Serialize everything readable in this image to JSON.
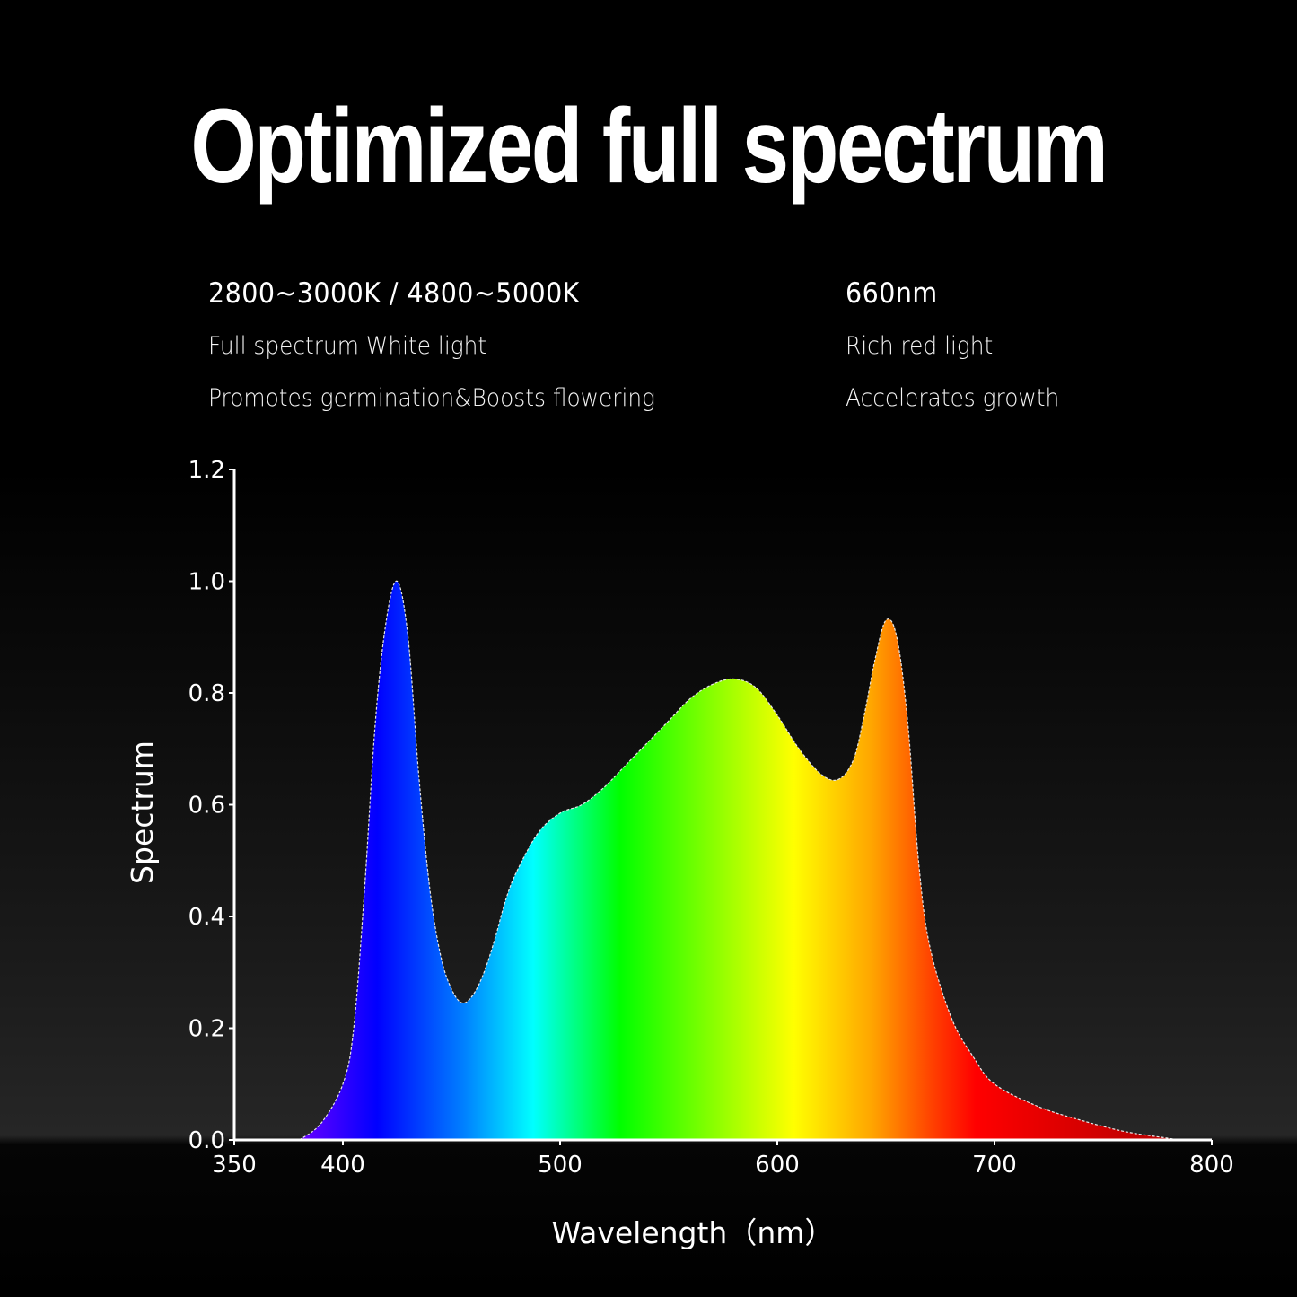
{
  "header": {
    "title": "Optimized full spectrum"
  },
  "features": {
    "left": {
      "heading": "2800~3000K / 4800~5000K",
      "line1": "Full spectrum White light",
      "line2": "Promotes germination&Boosts flowering"
    },
    "right": {
      "heading": "660nm",
      "line1": "Rich red light",
      "line2": "Accelerates growth"
    }
  },
  "colors": {
    "background": "#000000",
    "text": "#ffffff",
    "spectrum_stops": [
      "#6a00ff",
      "#0000ff",
      "#0080ff",
      "#00ffff",
      "#00ff00",
      "#80ff00",
      "#ffff00",
      "#ffa500",
      "#ff4000",
      "#ff0000",
      "#c00000"
    ]
  },
  "chart_data": {
    "type": "area",
    "title": "",
    "xlabel": "Wavelength（nm）",
    "ylabel": "Spectrum",
    "xlim": [
      350,
      800
    ],
    "ylim": [
      0,
      1.2
    ],
    "x_ticks": [
      350,
      400,
      500,
      600,
      700,
      800
    ],
    "y_ticks": [
      "0.0",
      "0.2",
      "0.4",
      "0.6",
      "0.8",
      "1.0",
      "1.2"
    ],
    "grid": false,
    "legend": null,
    "fill": "rainbow gradient by wavelength",
    "series": [
      {
        "name": "Spectrum",
        "x": [
          380,
          390,
          400,
          405,
          410,
          415,
          420,
          425,
          430,
          435,
          440,
          445,
          450,
          455,
          460,
          465,
          470,
          475,
          480,
          490,
          500,
          510,
          520,
          530,
          540,
          550,
          560,
          570,
          580,
          590,
          600,
          610,
          620,
          628,
          635,
          640,
          645,
          650,
          655,
          660,
          665,
          670,
          680,
          690,
          700,
          720,
          740,
          760,
          780,
          785
        ],
        "y": [
          0.0,
          0.03,
          0.1,
          0.2,
          0.45,
          0.75,
          0.93,
          1.0,
          0.9,
          0.65,
          0.45,
          0.33,
          0.27,
          0.245,
          0.26,
          0.3,
          0.36,
          0.43,
          0.48,
          0.55,
          0.585,
          0.6,
          0.63,
          0.67,
          0.71,
          0.75,
          0.79,
          0.815,
          0.825,
          0.81,
          0.76,
          0.7,
          0.655,
          0.645,
          0.68,
          0.76,
          0.86,
          0.93,
          0.9,
          0.75,
          0.5,
          0.35,
          0.22,
          0.15,
          0.1,
          0.06,
          0.035,
          0.015,
          0.003,
          0.0
        ]
      }
    ],
    "annotations": []
  }
}
